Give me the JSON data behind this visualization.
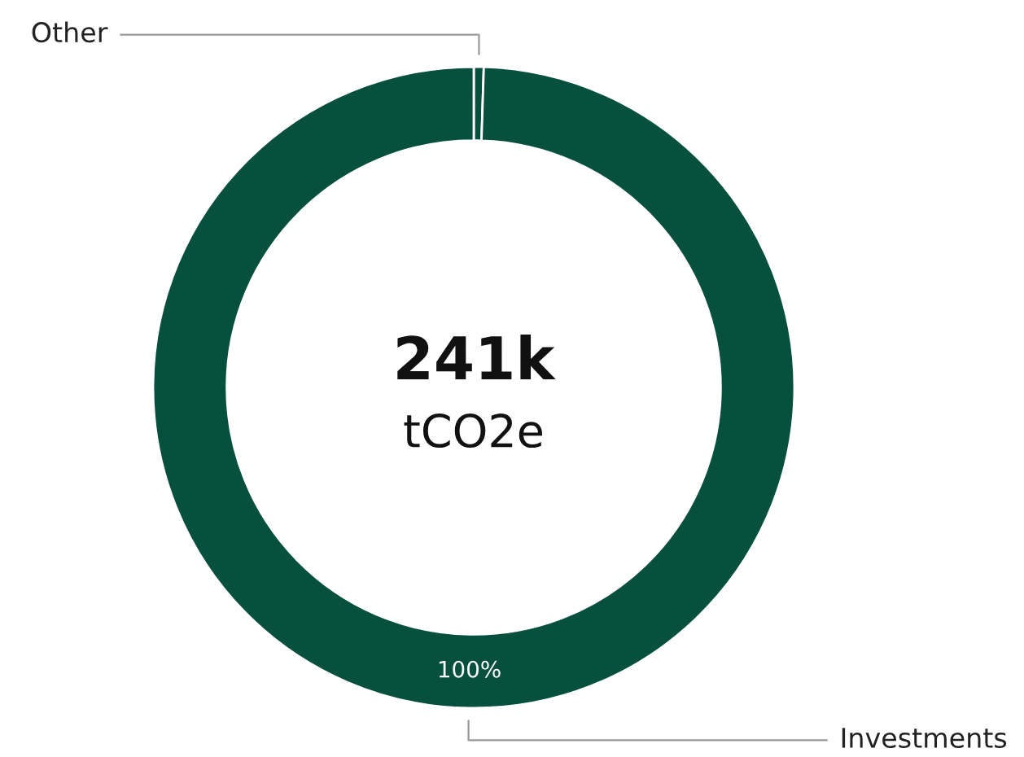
{
  "chart_data": {
    "type": "donut",
    "categories": [
      "Other",
      "Investments"
    ],
    "values": [
      0.5,
      99.5
    ],
    "colors": [
      "#07503e",
      "#07503e"
    ],
    "value_labels": [
      null,
      "100%"
    ],
    "annotations": [
      "241k",
      "tCO2e"
    ],
    "legend": false
  }
}
